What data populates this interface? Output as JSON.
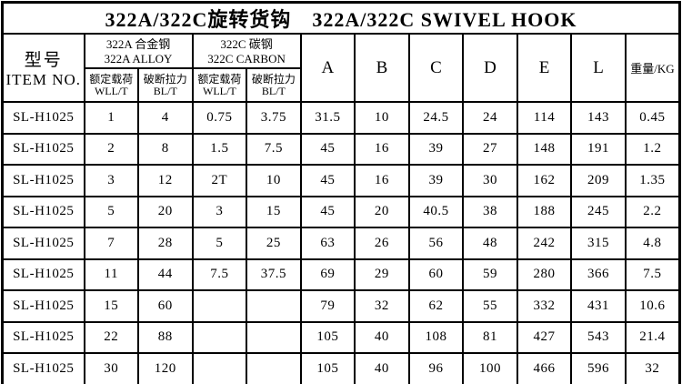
{
  "title": "322A/322C旋转货钩　322A/322C SWIVEL HOOK",
  "table": {
    "item_col_header": {
      "zh": "型号",
      "en": "ITEM NO."
    },
    "groups": [
      {
        "zh": "322A 合金钢",
        "en": "322A ALLOY"
      },
      {
        "zh": "322C 碳钢",
        "en": "322C CARBON"
      }
    ],
    "sub_headers": [
      {
        "zh": "额定载荷",
        "en": "WLL/T"
      },
      {
        "zh": "破断拉力",
        "en": "BL/T"
      },
      {
        "zh": "额定载荷",
        "en": "WLL/T"
      },
      {
        "zh": "破断拉力",
        "en": "BL/T"
      }
    ],
    "dim_headers": [
      "A",
      "B",
      "C",
      "D",
      "E",
      "L"
    ],
    "weight_header": "重量/KG",
    "rows": [
      [
        "SL-H1025",
        "1",
        "4",
        "0.75",
        "3.75",
        "31.5",
        "10",
        "24.5",
        "24",
        "114",
        "143",
        "0.45"
      ],
      [
        "SL-H1025",
        "2",
        "8",
        "1.5",
        "7.5",
        "45",
        "16",
        "39",
        "27",
        "148",
        "191",
        "1.2"
      ],
      [
        "SL-H1025",
        "3",
        "12",
        "2T",
        "10",
        "45",
        "16",
        "39",
        "30",
        "162",
        "209",
        "1.35"
      ],
      [
        "SL-H1025",
        "5",
        "20",
        "3",
        "15",
        "45",
        "20",
        "40.5",
        "38",
        "188",
        "245",
        "2.2"
      ],
      [
        "SL-H1025",
        "7",
        "28",
        "5",
        "25",
        "63",
        "26",
        "56",
        "48",
        "242",
        "315",
        "4.8"
      ],
      [
        "SL-H1025",
        "11",
        "44",
        "7.5",
        "37.5",
        "69",
        "29",
        "60",
        "59",
        "280",
        "366",
        "7.5"
      ],
      [
        "SL-H1025",
        "15",
        "60",
        "",
        "",
        "79",
        "32",
        "62",
        "55",
        "332",
        "431",
        "10.6"
      ],
      [
        "SL-H1025",
        "22",
        "88",
        "",
        "",
        "105",
        "40",
        "108",
        "81",
        "427",
        "543",
        "21.4"
      ],
      [
        "SL-H1025",
        "30",
        "120",
        "",
        "",
        "105",
        "40",
        "96",
        "100",
        "466",
        "596",
        "32"
      ]
    ]
  }
}
